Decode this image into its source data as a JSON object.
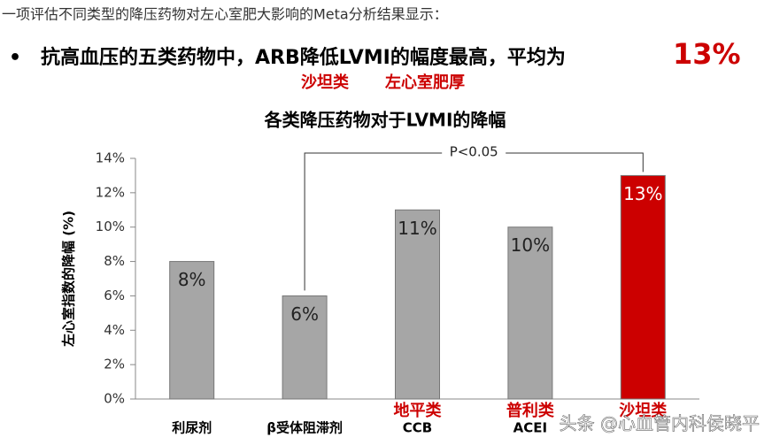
{
  "header": {
    "intro": "一项评估不同类型的降压药物对左心室肥大影响的Meta分析结果显示：",
    "bullet": "抗高血压的五类药物中，ARB降低LVMI的幅度最高，平均为",
    "highlight": "13%",
    "tags": [
      "沙坦类",
      "左心室肥厚"
    ]
  },
  "chart_data": {
    "type": "bar",
    "title": "各类降压药物对于LVMI的降幅",
    "y_label": "左心室指数的降幅 (%)",
    "categories": [
      "利尿剂",
      "β受体阻滞剂",
      "CCB",
      "ACEI",
      null
    ],
    "class_labels": [
      null,
      null,
      "地平类",
      "普利类",
      "沙坦类"
    ],
    "values": [
      8,
      6,
      11,
      10,
      13
    ],
    "value_labels": [
      "8%",
      "6%",
      "11%",
      "10%",
      "13%"
    ],
    "colors": [
      "#a6a6a6",
      "#a6a6a6",
      "#a6a6a6",
      "#a6a6a6",
      "#cc0000"
    ],
    "ylim": [
      0,
      14
    ],
    "yticks": [
      {
        "value": 0,
        "label": "0%"
      },
      {
        "value": 2,
        "label": "2%"
      },
      {
        "value": 4,
        "label": "4%"
      },
      {
        "value": 6,
        "label": "6%"
      },
      {
        "value": 8,
        "label": "8%"
      },
      {
        "value": 10,
        "label": "10%"
      },
      {
        "value": 12,
        "label": "12%"
      },
      {
        "value": 14,
        "label": "14%"
      }
    ],
    "annotation": "P<0.05"
  },
  "watermark": "头条 @心血管内科侯晓平"
}
